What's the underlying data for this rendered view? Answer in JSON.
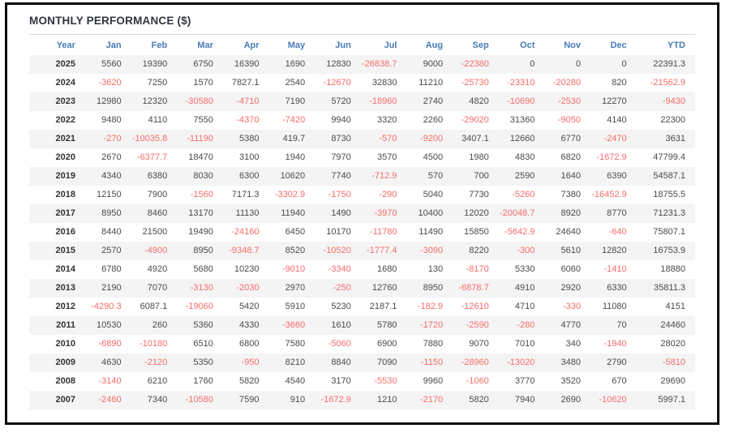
{
  "colors": {
    "frame": "#0d0d0d",
    "title": "#2f3640",
    "header": "#4a7ab8",
    "positive": "#4a4a4a",
    "negative": "#f66b6b",
    "year": "#333333",
    "stripe": "#f4f4f4",
    "divider": "#d9d9d9"
  },
  "chart_data": {
    "type": "table",
    "title": "MONTHLY PERFORMANCE ($)",
    "columns": [
      "Year",
      "Jan",
      "Feb",
      "Mar",
      "Apr",
      "May",
      "Jun",
      "Jul",
      "Aug",
      "Sep",
      "Oct",
      "Nov",
      "Dec",
      "YTD"
    ],
    "rows": [
      {
        "year": "2025",
        "values": [
          5560,
          19390,
          6750,
          16390,
          1690,
          12830,
          -26838.7,
          9000,
          -22380,
          0,
          0,
          0,
          22391.3
        ]
      },
      {
        "year": "2024",
        "values": [
          -3620,
          7250,
          1570,
          7827.1,
          2540,
          -12670,
          32830,
          11210,
          -25730,
          -23310,
          -20280,
          820,
          -21562.9
        ]
      },
      {
        "year": "2023",
        "values": [
          12980,
          12320,
          -30580,
          -4710,
          7190,
          5720,
          -18960,
          2740,
          4820,
          -10690,
          -2530,
          12270,
          -9430
        ]
      },
      {
        "year": "2022",
        "values": [
          9480,
          4110,
          7550,
          -4370,
          -7420,
          9940,
          3320,
          2260,
          -29020,
          31360,
          -9050,
          4140,
          22300
        ]
      },
      {
        "year": "2021",
        "values": [
          -270,
          -10035.8,
          -11190,
          5380,
          419.7,
          8730,
          -570,
          -9200,
          3407.1,
          12660,
          6770,
          -2470,
          3631
        ]
      },
      {
        "year": "2020",
        "values": [
          2670,
          -6377.7,
          18470,
          3100,
          1940,
          7970,
          3570,
          4500,
          1980,
          4830,
          6820,
          -1672.9,
          47799.4
        ]
      },
      {
        "year": "2019",
        "values": [
          4340,
          6380,
          8030,
          6300,
          10620,
          7740,
          -712.9,
          570,
          700,
          2590,
          1640,
          6390,
          54587.1
        ]
      },
      {
        "year": "2018",
        "values": [
          12150,
          7900,
          -1560,
          7171.3,
          -3302.9,
          -1750,
          -290,
          5040,
          7730,
          -5260,
          7380,
          -16452.9,
          18755.5
        ]
      },
      {
        "year": "2017",
        "values": [
          8950,
          8460,
          13170,
          11130,
          11940,
          1490,
          -3970,
          10400,
          12020,
          -20048.7,
          8920,
          8770,
          71231.3
        ]
      },
      {
        "year": "2016",
        "values": [
          8440,
          21500,
          19490,
          -24160,
          6450,
          10170,
          -11780,
          11490,
          15850,
          -5642.9,
          24640,
          -640,
          75807.1
        ]
      },
      {
        "year": "2015",
        "values": [
          2570,
          -4900,
          8950,
          -9348.7,
          8520,
          -10520,
          -1777.4,
          -3090,
          8220,
          -300,
          5610,
          12820,
          16753.9
        ]
      },
      {
        "year": "2014",
        "values": [
          6780,
          4920,
          5680,
          10230,
          -9010,
          -3340,
          1680,
          130,
          -8170,
          5330,
          6060,
          -1410,
          18880
        ]
      },
      {
        "year": "2013",
        "values": [
          2190,
          7070,
          -3130,
          -2030,
          2970,
          -250,
          12760,
          8950,
          -6878.7,
          4910,
          2920,
          6330,
          35811.3
        ]
      },
      {
        "year": "2012",
        "values": [
          -4290.3,
          6087.1,
          -19060,
          5420,
          5910,
          5230,
          2187.1,
          -182.9,
          -12610,
          4710,
          -330,
          11080,
          4151
        ]
      },
      {
        "year": "2011",
        "values": [
          10530,
          260,
          5360,
          4330,
          -3660,
          1610,
          5780,
          -1720,
          -2590,
          -280,
          4770,
          70,
          24460
        ]
      },
      {
        "year": "2010",
        "values": [
          -6890,
          -10180,
          6510,
          6800,
          7580,
          -5060,
          6900,
          7880,
          9070,
          7010,
          340,
          -1940,
          28020
        ]
      },
      {
        "year": "2009",
        "values": [
          4630,
          -2120,
          5350,
          -950,
          8210,
          8840,
          7090,
          -1150,
          -28960,
          -13020,
          3480,
          2790,
          -5810
        ]
      },
      {
        "year": "2008",
        "values": [
          -3140,
          6210,
          1760,
          5820,
          4540,
          3170,
          -5530,
          9960,
          -1060,
          3770,
          3520,
          670,
          29690
        ]
      },
      {
        "year": "2007",
        "values": [
          -2460,
          7340,
          -10580,
          7590,
          910,
          -1672.9,
          1210,
          -2170,
          5820,
          7940,
          2690,
          -10620,
          5997.1
        ]
      }
    ]
  }
}
